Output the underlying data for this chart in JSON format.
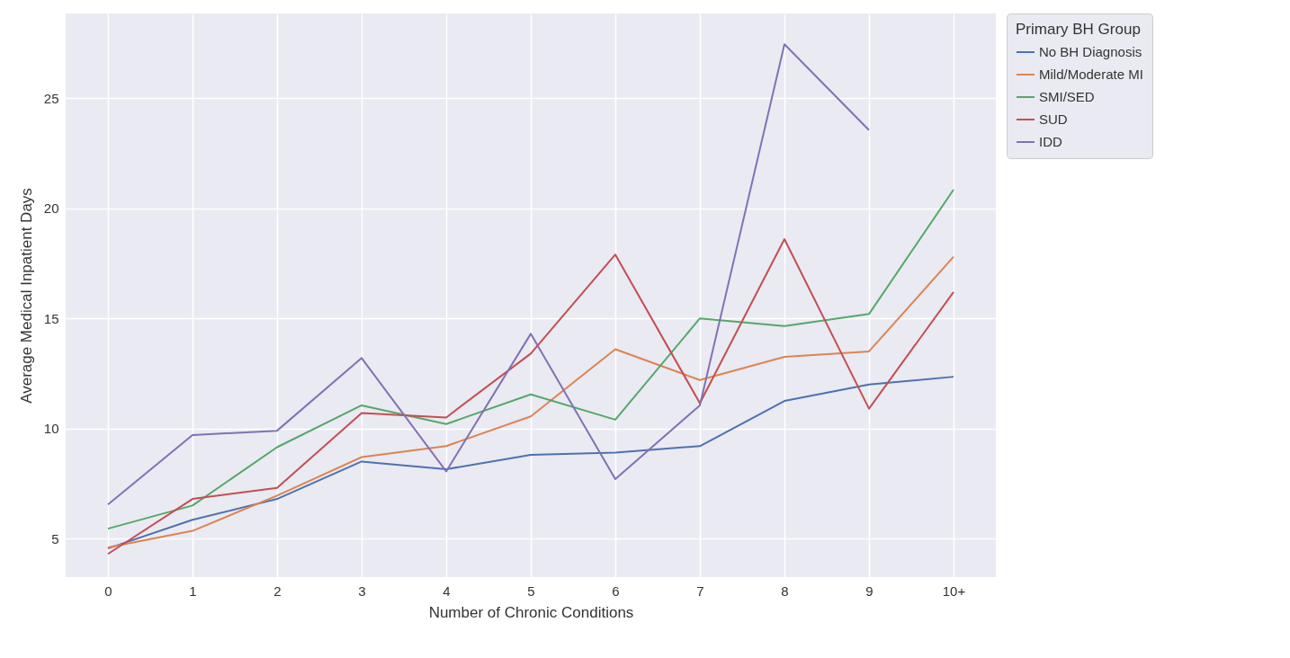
{
  "chart_data": {
    "type": "line",
    "xlabel": "Number of Chronic Conditions",
    "ylabel": "Average Medical Inpatient Days",
    "legend_title": "Primary BH Group",
    "categories": [
      "0",
      "1",
      "2",
      "3",
      "4",
      "5",
      "6",
      "7",
      "8",
      "9",
      "10+"
    ],
    "series": [
      {
        "name": "No BH Diagnosis",
        "color": "#4c72b0",
        "values": [
          4.55,
          5.85,
          6.8,
          8.5,
          8.15,
          8.8,
          8.9,
          9.2,
          11.25,
          12.0,
          12.35
        ]
      },
      {
        "name": "Mild/Moderate MI",
        "color": "#dd8452",
        "values": [
          4.6,
          5.35,
          6.95,
          8.7,
          9.2,
          10.55,
          13.6,
          12.2,
          13.25,
          13.5,
          17.8
        ]
      },
      {
        "name": "SMI/SED",
        "color": "#55a868",
        "values": [
          5.45,
          6.5,
          9.15,
          11.05,
          10.2,
          11.55,
          10.4,
          15.0,
          14.65,
          15.2,
          20.85
        ]
      },
      {
        "name": "SUD",
        "color": "#c44e52",
        "values": [
          4.3,
          6.8,
          7.3,
          10.7,
          10.5,
          13.4,
          17.9,
          11.15,
          18.6,
          10.9,
          16.2
        ]
      },
      {
        "name": "IDD",
        "color": "#8172b3",
        "values": [
          6.55,
          9.7,
          9.9,
          13.2,
          8.05,
          14.3,
          7.7,
          11.05,
          27.45,
          23.55,
          null
        ]
      }
    ],
    "ylim": [
      3.25,
      28.85
    ],
    "yticks": [
      5,
      10,
      15,
      20,
      25
    ],
    "grid": true,
    "legend": "top right",
    "marker": "none",
    "line_style": "solid"
  }
}
